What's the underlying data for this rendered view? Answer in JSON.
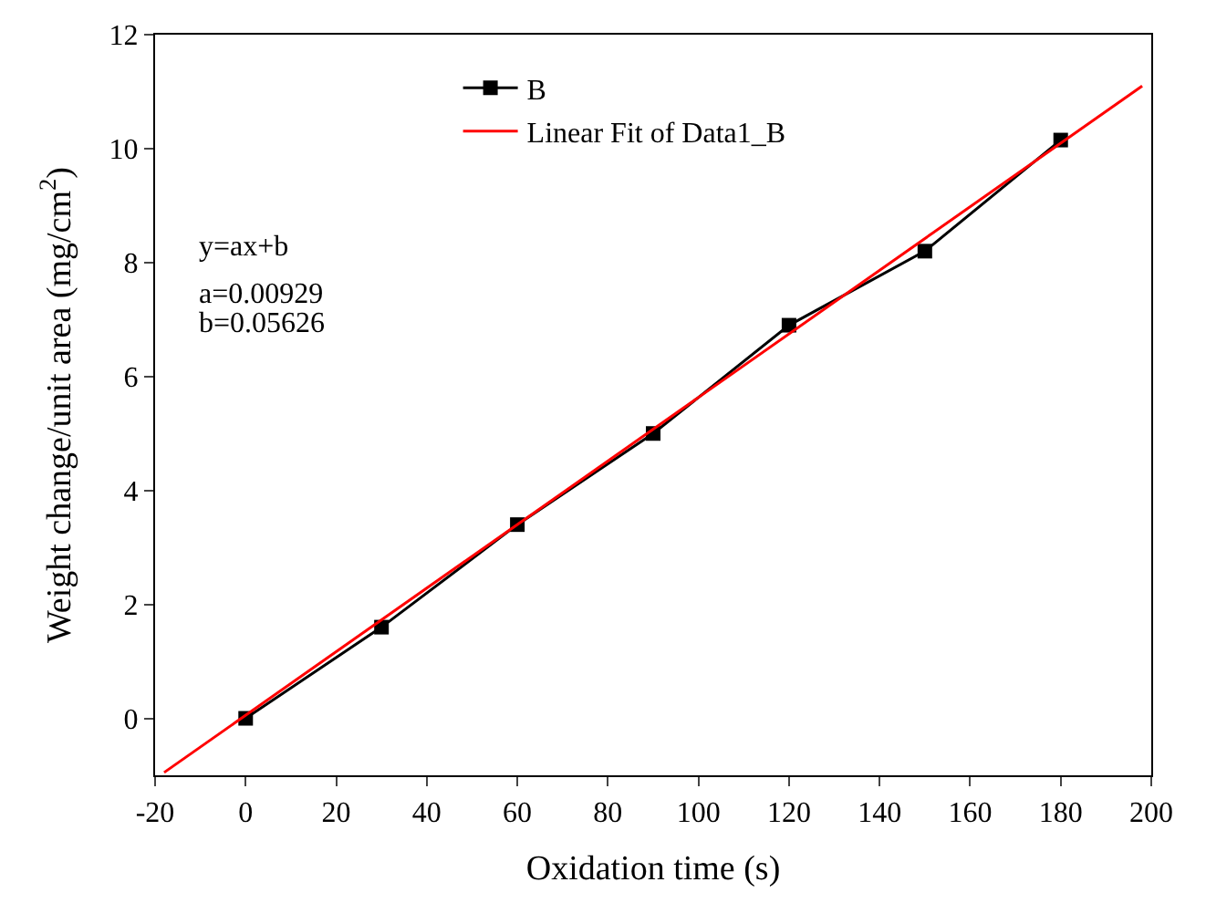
{
  "chart_data": {
    "type": "line",
    "xlabel": "Oxidation time (s)",
    "ylabel": "Weight change/unit area (mg/cm$^{2}$)",
    "x": [
      0,
      30,
      60,
      90,
      120,
      150,
      180
    ],
    "series": [
      {
        "name": "B",
        "color": "#000000",
        "values": [
          0,
          1.6,
          3.4,
          5.0,
          6.9,
          8.2,
          10.15
        ],
        "marker": "square",
        "line_style": "solid"
      },
      {
        "name": "Linear Fit of Data1_B",
        "color": "#ff0000",
        "type": "line",
        "x": [
          -18,
          198
        ],
        "values": [
          -0.95,
          11.1
        ],
        "marker": "none",
        "line_style": "solid"
      }
    ],
    "xlim": [
      -20,
      200
    ],
    "xticks": [
      -20,
      0,
      20,
      40,
      60,
      80,
      100,
      120,
      140,
      160,
      180,
      200
    ],
    "ylim": [
      -1,
      12
    ],
    "yticks": [
      0,
      2,
      4,
      6,
      8,
      10,
      12
    ],
    "legend": "top left",
    "annotations": [
      "y=ax+b",
      "a=0.00929",
      "b=0.05626"
    ]
  }
}
